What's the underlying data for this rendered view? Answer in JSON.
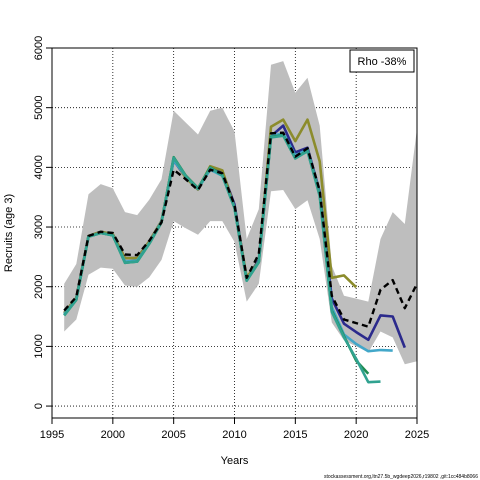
{
  "chart_data": {
    "type": "line",
    "xlabel": "Years",
    "ylabel": "Recruits (age 3)",
    "xlim": [
      1995,
      2025
    ],
    "ylim": [
      -200,
      6000
    ],
    "xticks": [
      1995,
      2000,
      2005,
      2010,
      2015,
      2020,
      2025
    ],
    "yticks": [
      0,
      1000,
      2000,
      3000,
      4000,
      5000,
      6000
    ],
    "grid": true,
    "legend": {
      "text": "Rho -38%",
      "position": "top-right"
    },
    "footer": "stockassessment.org,ltn27.5b_wgdeep2026,r19802 ,git:1cc484b8066",
    "band": {
      "color": "#bebebe",
      "x": [
        1996,
        1997,
        1998,
        1999,
        2000,
        2001,
        2002,
        2003,
        2004,
        2005,
        2006,
        2007,
        2008,
        2009,
        2010,
        2011,
        2012,
        2013,
        2014,
        2015,
        2016,
        2017,
        2018,
        2019,
        2020,
        2021,
        2022,
        2023,
        2024,
        2025
      ],
      "lower": [
        1250,
        1450,
        2200,
        2320,
        2300,
        2020,
        2000,
        2160,
        2450,
        3100,
        2980,
        2870,
        3100,
        3100,
        2750,
        1750,
        2050,
        3600,
        3620,
        3300,
        3450,
        2800,
        1400,
        1100,
        1000,
        900,
        1250,
        1150,
        700,
        750
      ],
      "upper": [
        2050,
        2380,
        3550,
        3720,
        3650,
        3250,
        3200,
        3460,
        3800,
        4950,
        4750,
        4550,
        4950,
        5000,
        4600,
        2800,
        3300,
        5720,
        5780,
        5250,
        5500,
        4700,
        2350,
        1850,
        1800,
        1750,
        2800,
        3250,
        3050,
        4650
      ]
    },
    "series": [
      {
        "color": "#000000",
        "dashed": true,
        "x": [
          1996,
          1997,
          1998,
          1999,
          2000,
          2001,
          2002,
          2003,
          2004,
          2005,
          2006,
          2007,
          2008,
          2009,
          2010,
          2011,
          2012,
          2013,
          2014,
          2015,
          2016,
          2017,
          2018,
          2019,
          2020,
          2021,
          2022,
          2023,
          2024,
          2025
        ],
        "values": [
          1600,
          1830,
          2850,
          2920,
          2900,
          2540,
          2530,
          2770,
          3080,
          3960,
          3800,
          3620,
          3960,
          3900,
          3370,
          2150,
          2550,
          4570,
          4580,
          4180,
          4320,
          3610,
          1850,
          1450,
          1390,
          1330,
          1950,
          2110,
          1640,
          2050
        ]
      },
      {
        "color": "#2b2a8c",
        "x": [
          1996,
          1997,
          1998,
          1999,
          2000,
          2001,
          2002,
          2003,
          2004,
          2005,
          2006,
          2007,
          2008,
          2009,
          2010,
          2011,
          2012,
          2013,
          2014,
          2015,
          2016,
          2017,
          2018,
          2019,
          2020,
          2021,
          2022,
          2023,
          2024
        ],
        "values": [
          1560,
          1810,
          2850,
          2920,
          2880,
          2480,
          2480,
          2760,
          3100,
          4120,
          3830,
          3630,
          4000,
          3930,
          3380,
          2130,
          2450,
          4520,
          4700,
          4250,
          4330,
          3590,
          1800,
          1380,
          1240,
          1110,
          1520,
          1500,
          980
        ]
      },
      {
        "color": "#8c8c2c",
        "x": [
          1996,
          1997,
          1998,
          1999,
          2000,
          2001,
          2002,
          2003,
          2004,
          2005,
          2006,
          2007,
          2008,
          2009,
          2010,
          2011,
          2012,
          2013,
          2014,
          2015,
          2016,
          2017,
          2018,
          2019,
          2020
        ],
        "values": [
          1560,
          1810,
          2850,
          2920,
          2880,
          2480,
          2480,
          2760,
          3100,
          4150,
          3820,
          3630,
          4020,
          3950,
          3330,
          2160,
          2420,
          4680,
          4800,
          4440,
          4800,
          4100,
          2150,
          2190,
          1990
        ]
      },
      {
        "color": "#42a7c9",
        "x": [
          1996,
          1997,
          1998,
          1999,
          2000,
          2001,
          2002,
          2003,
          2004,
          2005,
          2006,
          2007,
          2008,
          2009,
          2010,
          2011,
          2012,
          2013,
          2014,
          2015,
          2016,
          2017,
          2018,
          2019,
          2020,
          2021,
          2022,
          2023
        ],
        "values": [
          1540,
          1790,
          2840,
          2900,
          2860,
          2420,
          2440,
          2730,
          3090,
          4120,
          3850,
          3640,
          3960,
          3860,
          3330,
          2110,
          2420,
          4520,
          4570,
          4200,
          4300,
          3560,
          1660,
          1200,
          1040,
          920,
          940,
          930
        ]
      },
      {
        "color": "#1f8c50",
        "x": [
          1996,
          1997,
          1998,
          1999,
          2000,
          2001,
          2002,
          2003,
          2004,
          2005,
          2006,
          2007,
          2008,
          2009,
          2010,
          2011,
          2012,
          2013,
          2014,
          2015,
          2016,
          2017,
          2018,
          2019,
          2020,
          2021
        ],
        "values": [
          1520,
          1780,
          2840,
          2900,
          2860,
          2400,
          2420,
          2720,
          3080,
          4170,
          3860,
          3650,
          4000,
          3870,
          3320,
          2100,
          2410,
          4510,
          4540,
          4150,
          4280,
          3540,
          1600,
          1170,
          760,
          540
        ]
      },
      {
        "color": "#30a290",
        "x": [
          1996,
          1997,
          1998,
          1999,
          2000,
          2001,
          2002,
          2003,
          2004,
          2005,
          2006,
          2007,
          2008,
          2009,
          2010,
          2011,
          2012,
          2013,
          2014,
          2015,
          2016,
          2017,
          2018,
          2019,
          2020,
          2021,
          2022
        ],
        "values": [
          1520,
          1780,
          2840,
          2900,
          2860,
          2400,
          2420,
          2720,
          3080,
          4160,
          3850,
          3640,
          3990,
          3860,
          3320,
          2100,
          2410,
          4500,
          4530,
          4150,
          4270,
          3520,
          1580,
          1150,
          790,
          400,
          410
        ]
      }
    ]
  }
}
